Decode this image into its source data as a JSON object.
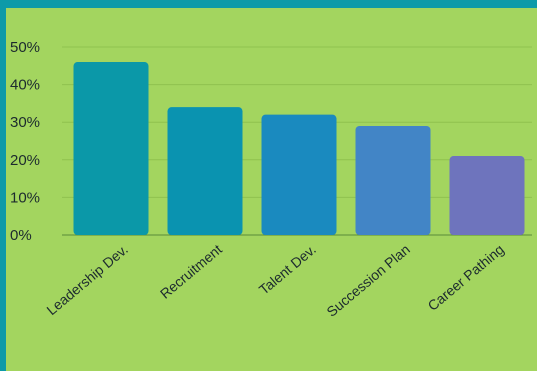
{
  "chart_data": {
    "type": "bar",
    "categories": [
      "Leadership Dev.",
      "Recruitment",
      "Talent Dev.",
      "Succession Plan",
      "Career Pathing"
    ],
    "values": [
      46,
      34,
      32,
      29,
      21
    ],
    "bar_colors": [
      "#0b98a8",
      "#0a93b0",
      "#1a8abf",
      "#4285c6",
      "#6e74bd"
    ],
    "yticks": [
      "0%",
      "10%",
      "20%",
      "30%",
      "40%",
      "50%"
    ],
    "ylim": [
      0,
      50
    ],
    "grid": true,
    "title": "",
    "xlabel": "",
    "ylabel": ""
  },
  "colors": {
    "frame": "#0d9aa8",
    "panel": "#a3d55f"
  }
}
